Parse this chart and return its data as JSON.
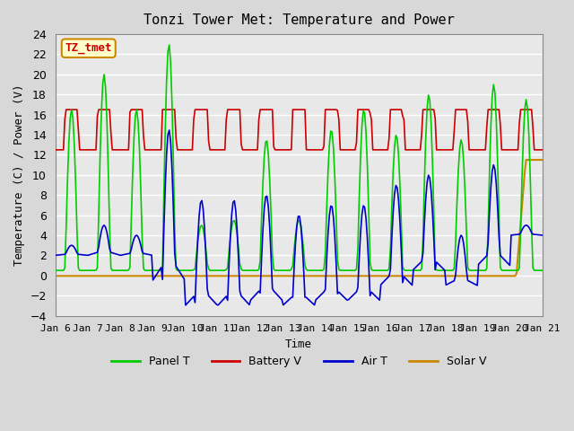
{
  "title": "Tonzi Tower Met: Temperature and Power",
  "xlabel": "Time",
  "ylabel": "Temperature (C) / Power (V)",
  "ylim": [
    -4,
    24
  ],
  "xlim": [
    0,
    15
  ],
  "annotation_label": "TZ_tmet",
  "xtick_labels": [
    "Jan 6",
    "Jan 7",
    "Jan 8",
    "Jan 9",
    "Jan 10",
    "Jan 11",
    "Jan 12",
    "Jan 13",
    "Jan 14",
    "Jan 15",
    "Jan 16",
    "Jan 17",
    "Jan 18",
    "Jan 19",
    "Jan 20",
    "Jan 21"
  ],
  "legend_labels": [
    "Panel T",
    "Battery V",
    "Air T",
    "Solar V"
  ],
  "line_colors": [
    "#00cc00",
    "#cc0000",
    "#0000cc",
    "#cc8800"
  ],
  "bg_color": "#e8e8e8",
  "plot_bg": "#e8e8e8",
  "grid_color": "#ffffff",
  "annotation_facecolor": "#ffffcc",
  "annotation_edgecolor": "#cc8800",
  "annotation_textcolor": "#cc0000"
}
